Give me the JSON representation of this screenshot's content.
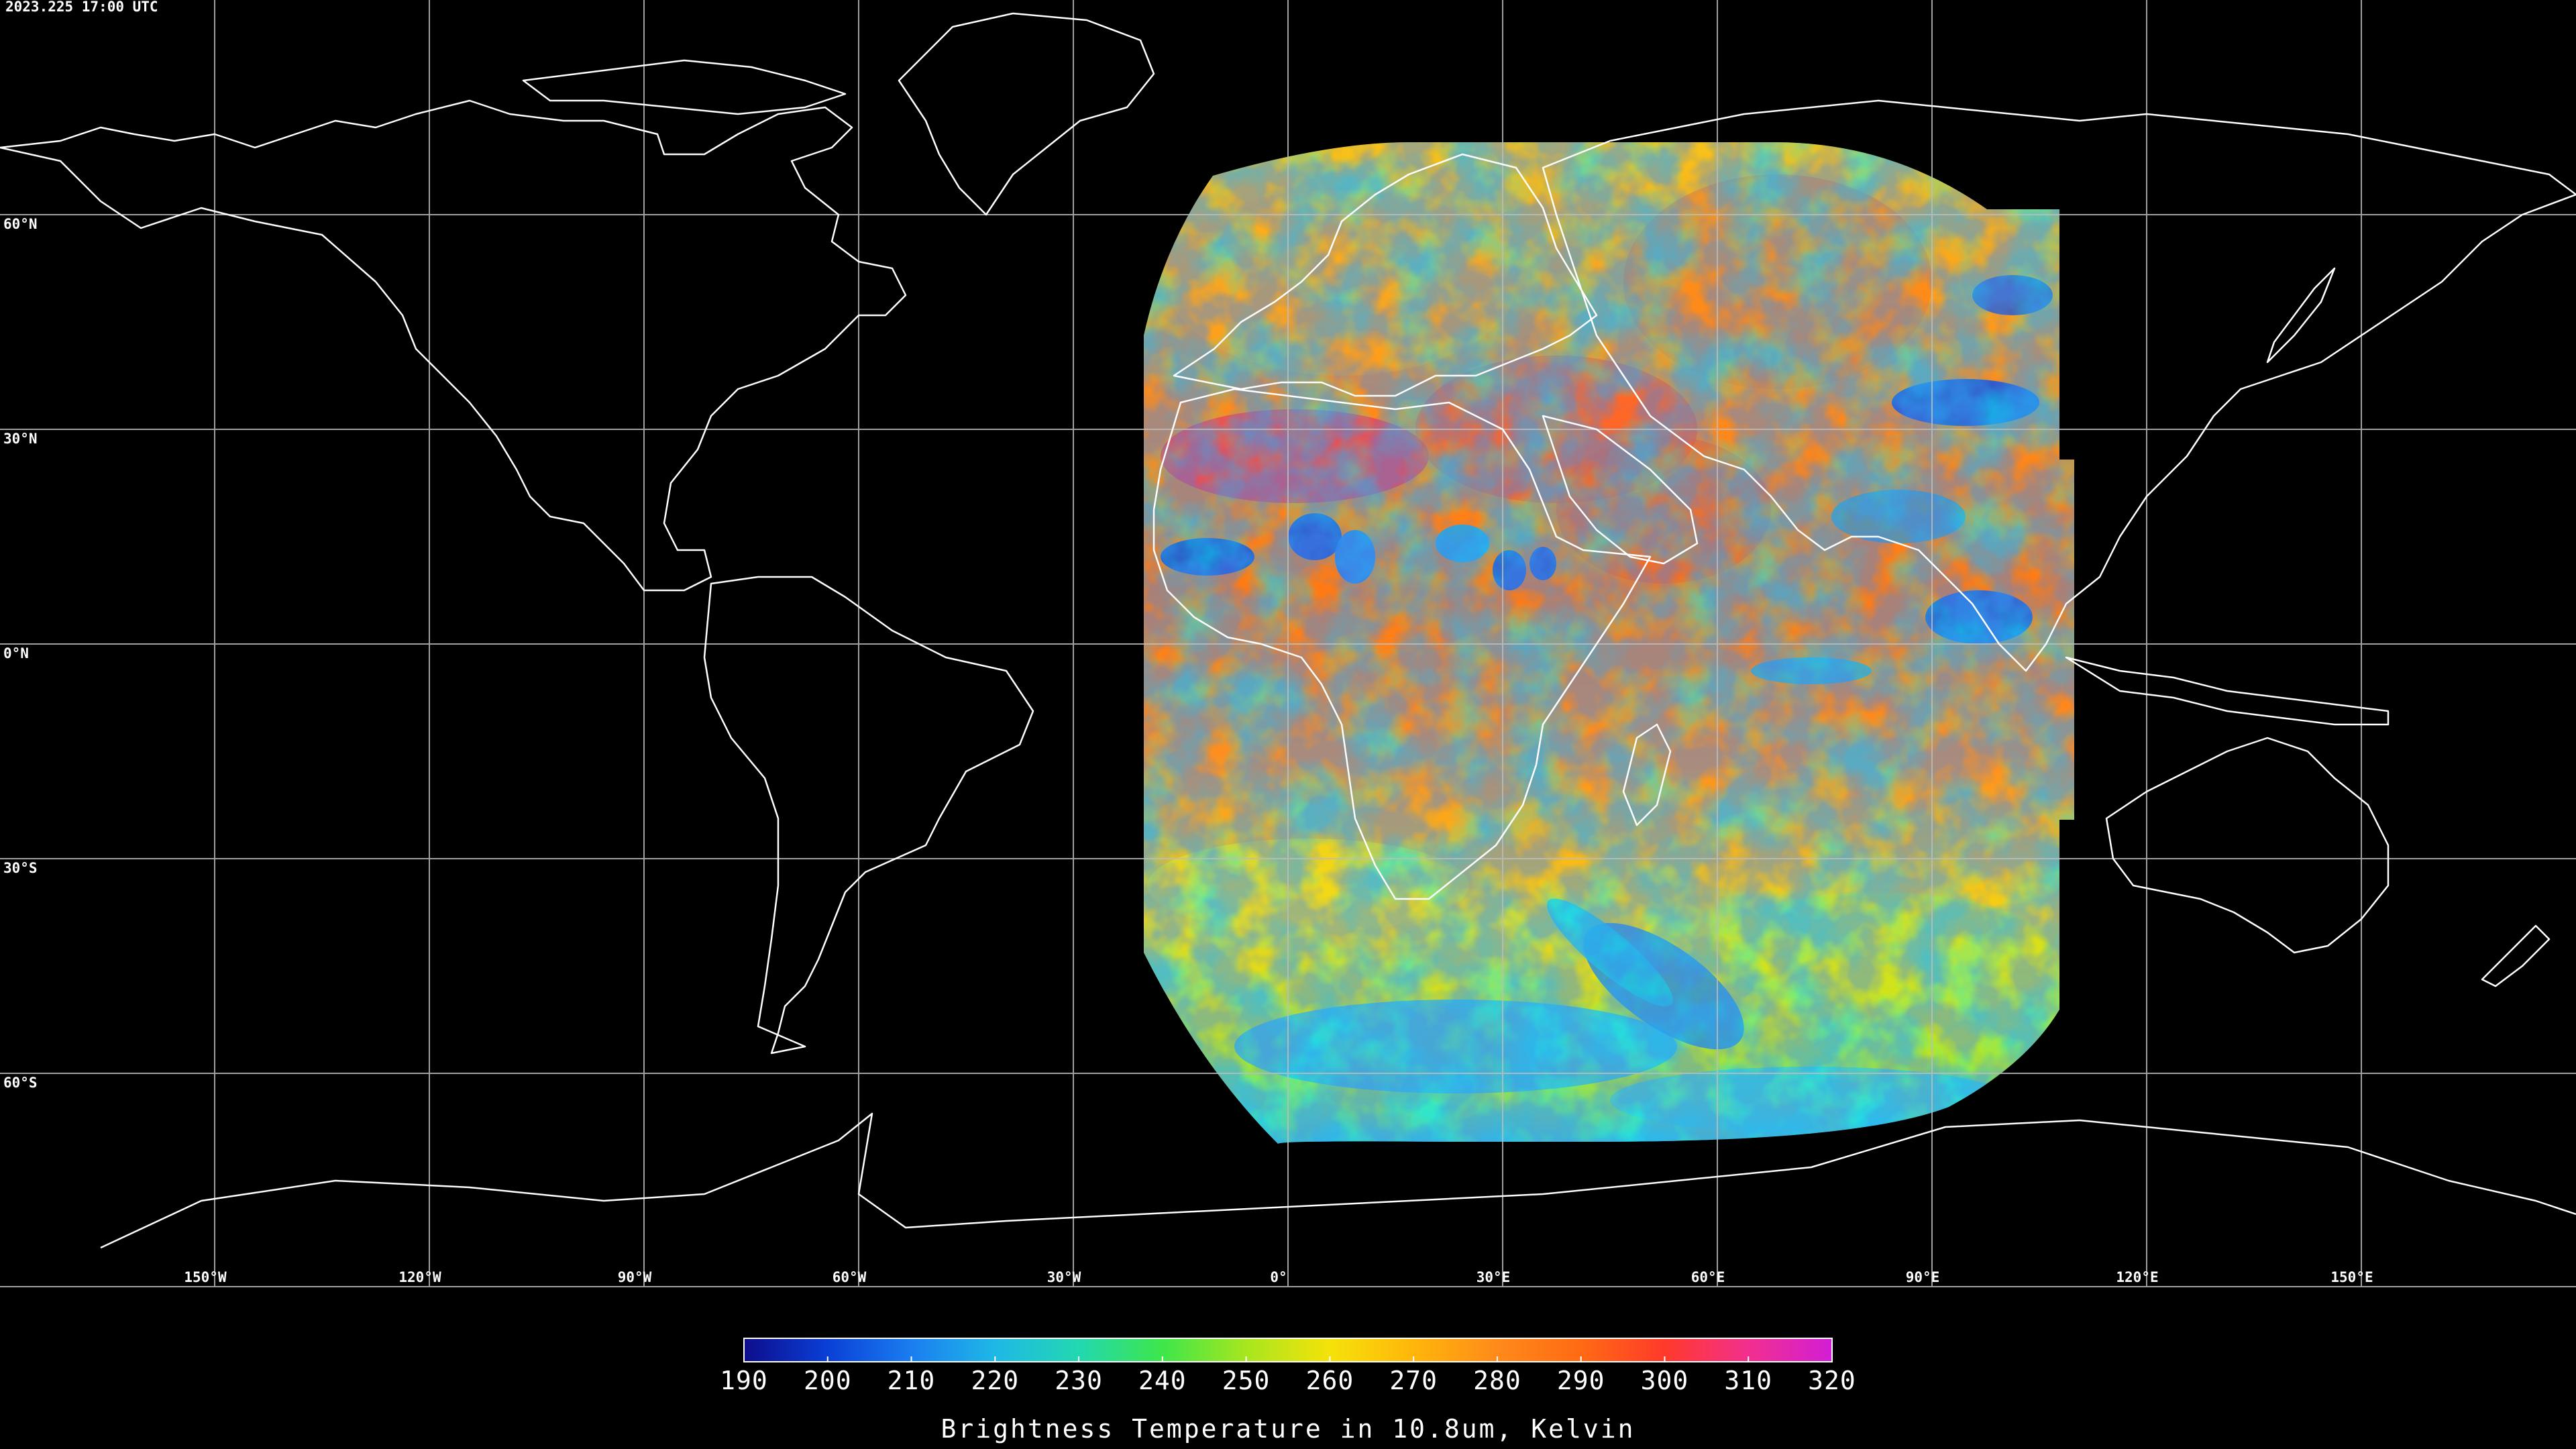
{
  "timestamp": "2023.225 17:00 UTC",
  "latitude_labels": [
    "60°N",
    "30°N",
    "0°N",
    "30°S",
    "60°S"
  ],
  "longitude_labels": [
    "150°W",
    "120°W",
    "90°W",
    "60°W",
    "30°W",
    "0°",
    "30°E",
    "60°E",
    "90°E",
    "120°E",
    "150°E"
  ],
  "colorbar": {
    "ticks": [
      "190",
      "200",
      "210",
      "220",
      "230",
      "240",
      "250",
      "260",
      "270",
      "280",
      "290",
      "300",
      "310",
      "320"
    ],
    "label": "Brightness Temperature in 10.8um, Kelvin",
    "colors": [
      "#0d0d8c",
      "#0a3fd6",
      "#1a7ef0",
      "#1fb8e6",
      "#22d8b0",
      "#3ee64a",
      "#a8e61e",
      "#f5e20a",
      "#ffb60a",
      "#ff8a1a",
      "#ff6a14",
      "#ff3a2a",
      "#f22f8e",
      "#d21ed6"
    ]
  },
  "map_colors": {
    "background": "#000000",
    "grid": "#bdbdbd",
    "coastline": "#ffffff"
  }
}
